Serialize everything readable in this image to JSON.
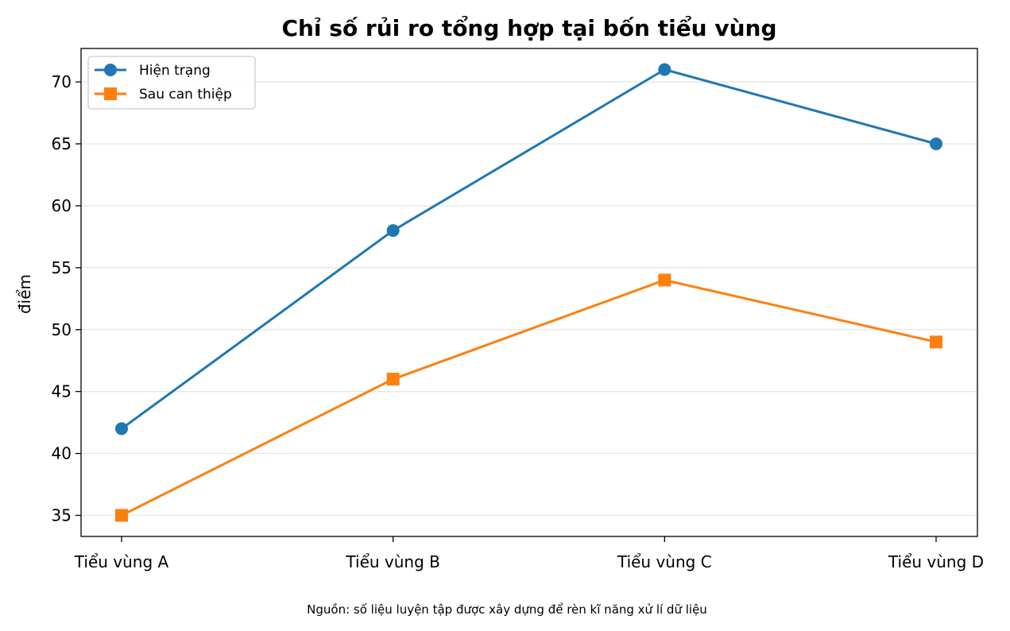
{
  "chart_data": {
    "type": "line",
    "title": "Chỉ số rủi ro tổng hợp tại bốn tiểu vùng",
    "xlabel": "",
    "ylabel": "điểm",
    "categories": [
      "Tiểu vùng A",
      "Tiểu vùng B",
      "Tiểu vùng C",
      "Tiểu vùng D"
    ],
    "ylim": [
      33.3,
      72.7
    ],
    "yticks": [
      35,
      40,
      45,
      50,
      55,
      60,
      65,
      70
    ],
    "grid": "horizontal",
    "legend_position": "top-left",
    "series": [
      {
        "name": "Hiện trạng",
        "values": [
          42,
          58,
          71,
          65
        ],
        "color": "#1f77b4",
        "marker": "circle"
      },
      {
        "name": "Sau can thiệp",
        "values": [
          35,
          46,
          54,
          49
        ],
        "color": "#ff7f0e",
        "marker": "square"
      }
    ],
    "footnote": "Nguồn: số liệu luyện tập được xây dựng để rèn kĩ năng xử lí dữ liệu"
  }
}
